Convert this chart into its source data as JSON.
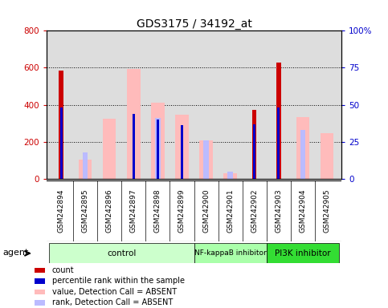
{
  "title": "GDS3175 / 34192_at",
  "samples": [
    "GSM242894",
    "GSM242895",
    "GSM242896",
    "GSM242897",
    "GSM242898",
    "GSM242899",
    "GSM242900",
    "GSM242901",
    "GSM242902",
    "GSM242903",
    "GSM242904",
    "GSM242905"
  ],
  "count_values": [
    585,
    0,
    0,
    0,
    0,
    0,
    0,
    0,
    370,
    630,
    0,
    0
  ],
  "rank_values": [
    48,
    0,
    0,
    44,
    40,
    36,
    0,
    0,
    37,
    48,
    0,
    0
  ],
  "absent_value_values": [
    0,
    105,
    325,
    595,
    410,
    345,
    205,
    30,
    0,
    0,
    335,
    245
  ],
  "absent_rank_values": [
    0,
    18,
    0,
    0,
    41,
    0,
    26,
    5,
    0,
    0,
    33,
    0
  ],
  "groups": [
    {
      "label": "control",
      "start": 0,
      "end": 6,
      "color": "#ccffcc"
    },
    {
      "label": "NF-kappaB inhibitor",
      "start": 6,
      "end": 9,
      "color": "#aaffaa"
    },
    {
      "label": "PI3K inhibitor",
      "start": 9,
      "end": 12,
      "color": "#33dd33"
    }
  ],
  "ylim_left": [
    0,
    800
  ],
  "ylim_right": [
    0,
    100
  ],
  "yticks_left": [
    0,
    200,
    400,
    600,
    800
  ],
  "yticks_right": [
    0,
    25,
    50,
    75,
    100
  ],
  "ytick_labels_right": [
    "0",
    "25",
    "50",
    "75",
    "100%"
  ],
  "left_axis_color": "#cc0000",
  "right_axis_color": "#0000cc",
  "count_color": "#cc0000",
  "rank_color": "#0000cc",
  "absent_value_color": "#ffbbbb",
  "absent_rank_color": "#bbbbff",
  "background_color": "#ffffff",
  "plot_bg_color": "#dddddd",
  "tick_bg_color": "#cccccc"
}
